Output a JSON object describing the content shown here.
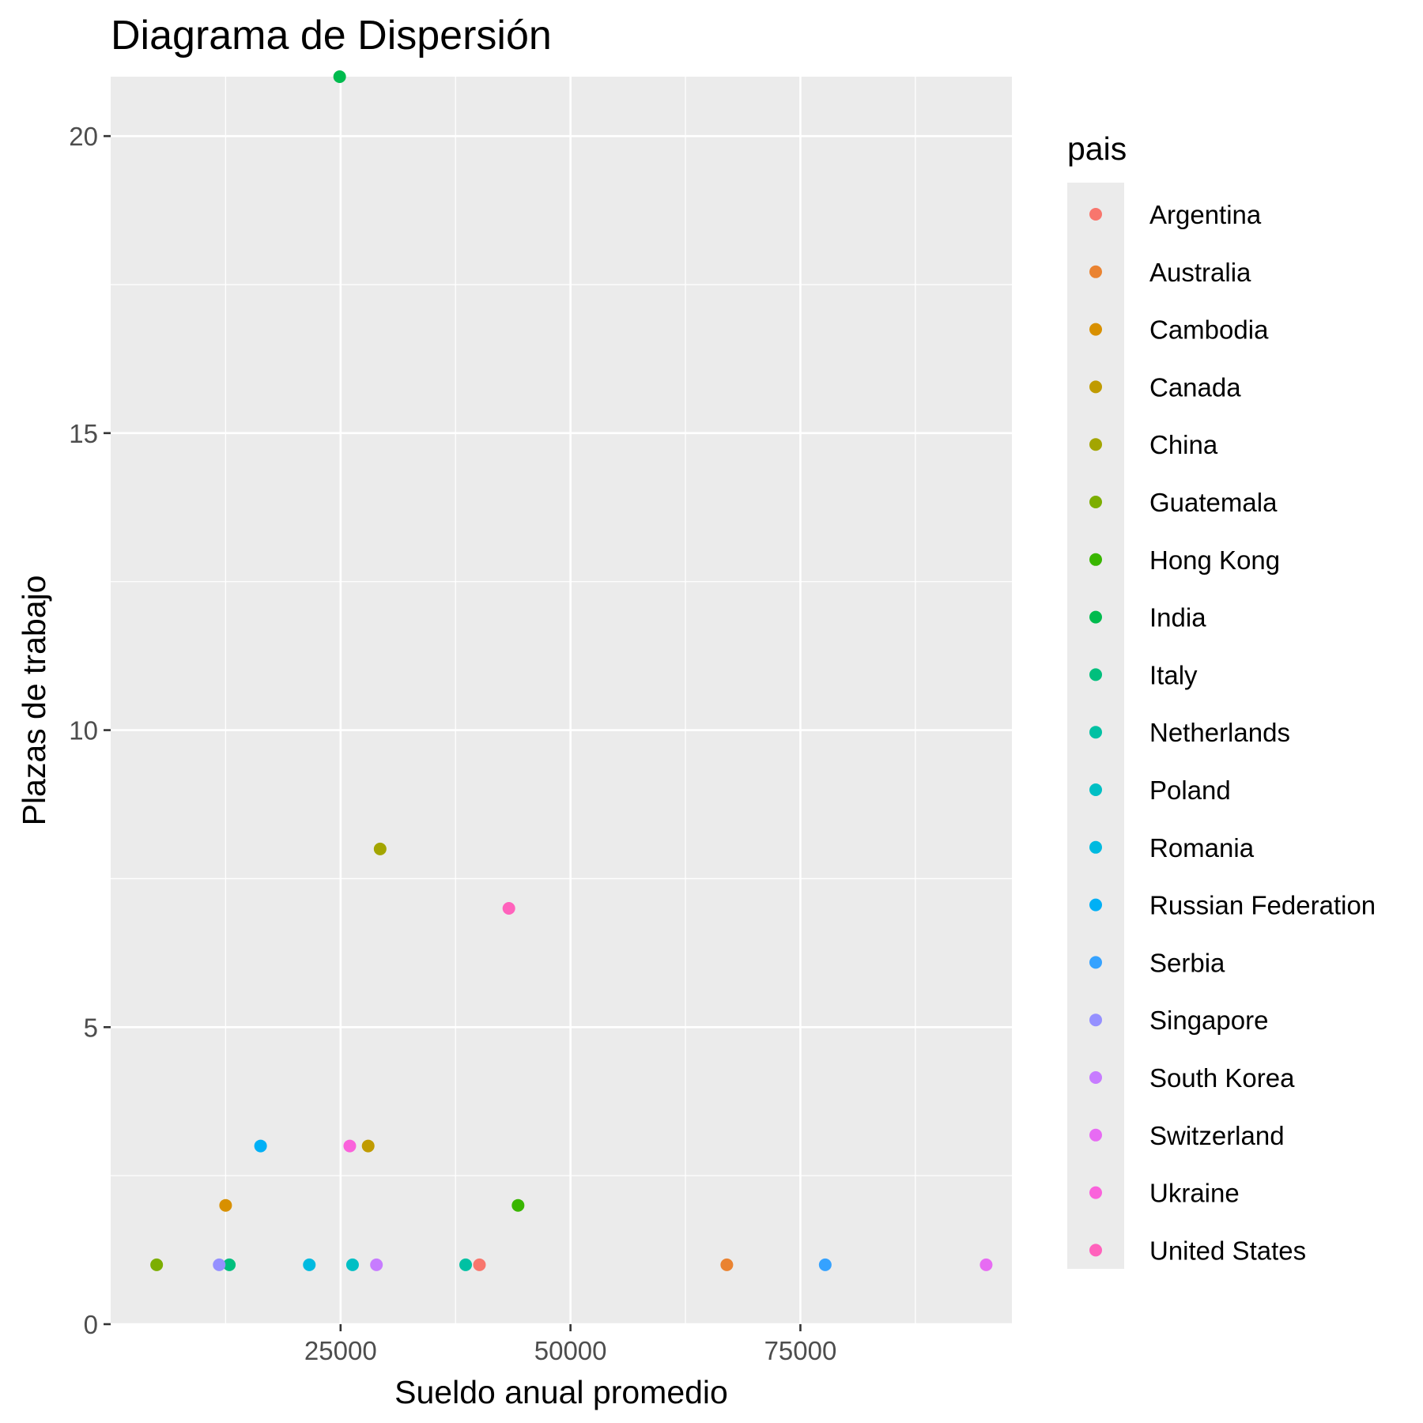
{
  "chart_data": {
    "type": "scatter",
    "title": "Diagrama de Dispersión",
    "xlabel": "Sueldo anual promedio",
    "ylabel": "Plazas de trabajo",
    "xlim": [
      0,
      98000
    ],
    "ylim": [
      0,
      21
    ],
    "x_ticks": [
      25000,
      50000,
      75000
    ],
    "x_tick_labels": [
      "25000",
      "50000",
      "75000"
    ],
    "y_ticks": [
      0,
      5,
      10,
      15,
      20
    ],
    "y_tick_labels": [
      "0",
      "5",
      "10",
      "15",
      "20"
    ],
    "grid": true,
    "legend_title": "pais",
    "legend_position": "right",
    "series": [
      {
        "name": "Argentina",
        "color": "#F8766D",
        "points": [
          [
            40100,
            1
          ]
        ]
      },
      {
        "name": "Australia",
        "color": "#EA8331",
        "points": [
          [
            67000,
            1
          ]
        ]
      },
      {
        "name": "Cambodia",
        "color": "#D89000",
        "points": [
          [
            12500,
            2
          ]
        ]
      },
      {
        "name": "Canada",
        "color": "#C09B00",
        "points": [
          [
            28000,
            3
          ]
        ]
      },
      {
        "name": "China",
        "color": "#A3A500",
        "points": [
          [
            29300,
            8
          ]
        ]
      },
      {
        "name": "Guatemala",
        "color": "#7CAE00",
        "points": [
          [
            5000,
            1
          ]
        ]
      },
      {
        "name": "Hong Kong",
        "color": "#39B600",
        "points": [
          [
            44300,
            2
          ]
        ]
      },
      {
        "name": "India",
        "color": "#00BB4E",
        "points": [
          [
            24900,
            21
          ]
        ]
      },
      {
        "name": "Italy",
        "color": "#00BF7D",
        "points": [
          [
            12900,
            1
          ]
        ]
      },
      {
        "name": "Netherlands",
        "color": "#00C1A3",
        "points": [
          [
            38600,
            1
          ]
        ]
      },
      {
        "name": "Poland",
        "color": "#00BFC4",
        "points": [
          [
            26300,
            1
          ]
        ]
      },
      {
        "name": "Romania",
        "color": "#00BAE0",
        "points": [
          [
            21600,
            1
          ]
        ]
      },
      {
        "name": "Russian Federation",
        "color": "#00B0F6",
        "points": [
          [
            16300,
            3
          ]
        ]
      },
      {
        "name": "Serbia",
        "color": "#35A2FF",
        "points": [
          [
            77700,
            1
          ]
        ]
      },
      {
        "name": "Singapore",
        "color": "#9590FF",
        "points": [
          [
            11800,
            1
          ]
        ]
      },
      {
        "name": "South Korea",
        "color": "#C77CFF",
        "points": [
          [
            28900,
            1
          ]
        ]
      },
      {
        "name": "Switzerland",
        "color": "#E76BF3",
        "points": [
          [
            95200,
            1
          ]
        ]
      },
      {
        "name": "Ukraine",
        "color": "#FA62DB",
        "points": [
          [
            26000,
            3
          ]
        ]
      },
      {
        "name": "United States",
        "color": "#FF62BC",
        "points": [
          [
            43300,
            7
          ]
        ]
      }
    ]
  },
  "colors": {
    "panel_background": "#EBEBEB",
    "grid_line": "#FFFFFF",
    "tick_text": "#4D4D4D",
    "tick_line": "#333333"
  }
}
